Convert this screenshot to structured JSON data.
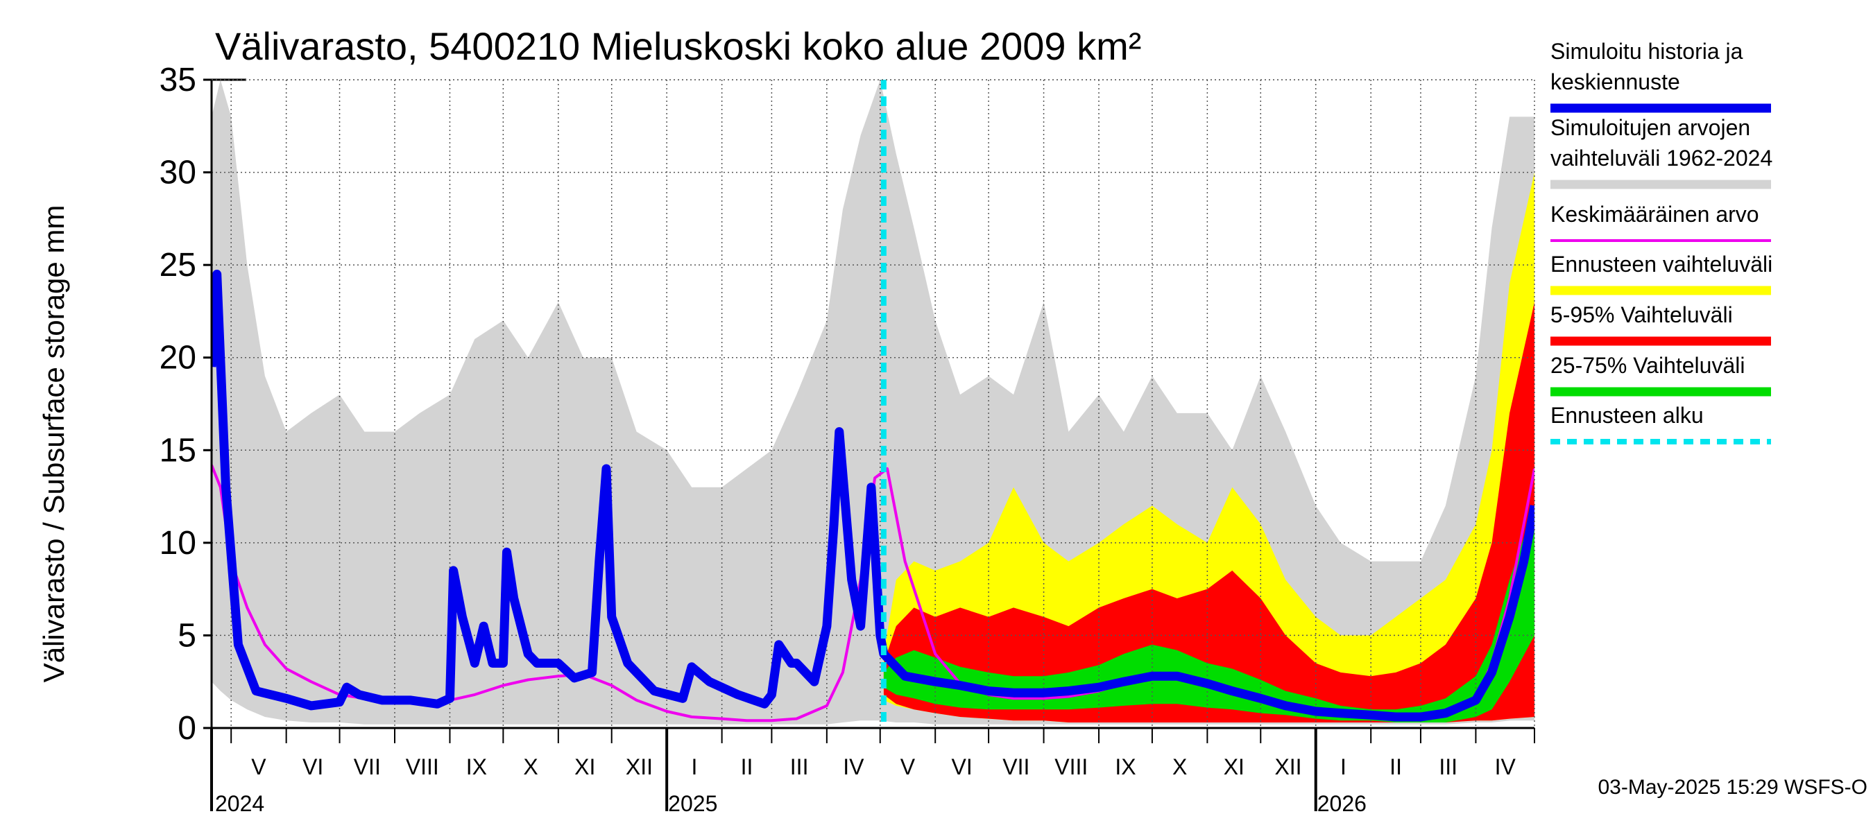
{
  "chart_data": {
    "type": "area",
    "title": "Välivarasto, 5400210 Mieluskoski koko alue 2009 km²",
    "ylabel": "Välivarasto / Subsurface storage  mm",
    "ylim": [
      0,
      35
    ],
    "yticks": [
      0,
      5,
      10,
      15,
      20,
      25,
      30,
      35
    ],
    "grid": true,
    "legend_position": "right",
    "xlim": [
      "2024-04-20",
      "2026-05-04"
    ],
    "months": [
      {
        "label": "V",
        "start": "2024-05-01"
      },
      {
        "label": "VI",
        "start": "2024-06-01"
      },
      {
        "label": "VII",
        "start": "2024-07-01"
      },
      {
        "label": "VIII",
        "start": "2024-08-01"
      },
      {
        "label": "IX",
        "start": "2024-09-01"
      },
      {
        "label": "X",
        "start": "2024-10-01"
      },
      {
        "label": "XI",
        "start": "2024-11-01"
      },
      {
        "label": "XII",
        "start": "2024-12-01"
      },
      {
        "label": "I",
        "start": "2025-01-01"
      },
      {
        "label": "II",
        "start": "2025-02-01"
      },
      {
        "label": "III",
        "start": "2025-03-01"
      },
      {
        "label": "IV",
        "start": "2025-04-01"
      },
      {
        "label": "V",
        "start": "2025-05-01"
      },
      {
        "label": "VI",
        "start": "2025-06-01"
      },
      {
        "label": "VII",
        "start": "2025-07-01"
      },
      {
        "label": "VIII",
        "start": "2025-08-01"
      },
      {
        "label": "IX",
        "start": "2025-09-01"
      },
      {
        "label": "X",
        "start": "2025-10-01"
      },
      {
        "label": "XI",
        "start": "2025-11-01"
      },
      {
        "label": "XII",
        "start": "2025-12-01"
      },
      {
        "label": "I",
        "start": "2026-01-01"
      },
      {
        "label": "II",
        "start": "2026-02-01"
      },
      {
        "label": "III",
        "start": "2026-03-01"
      },
      {
        "label": "IV",
        "start": "2026-04-01"
      }
    ],
    "years": [
      {
        "label": "2024",
        "date": "2024-05-01"
      },
      {
        "label": "2025",
        "date": "2025-01-01"
      },
      {
        "label": "2026",
        "date": "2026-01-01"
      }
    ],
    "forecast_start": "2025-05-03",
    "series": [
      {
        "name": "Simuloitujen arvojen vaihteluväli 1962-2024",
        "color": "#d3d3d3",
        "kind": "band",
        "x": [
          "2024-04-20",
          "2024-04-25",
          "2024-05-01",
          "2024-05-10",
          "2024-05-20",
          "2024-06-01",
          "2024-06-15",
          "2024-07-01",
          "2024-07-15",
          "2024-08-01",
          "2024-08-15",
          "2024-09-01",
          "2024-09-15",
          "2024-10-01",
          "2024-10-15",
          "2024-11-01",
          "2024-11-15",
          "2024-12-01",
          "2024-12-15",
          "2025-01-01",
          "2025-01-15",
          "2025-02-01",
          "2025-02-15",
          "2025-03-01",
          "2025-03-15",
          "2025-04-01",
          "2025-04-10",
          "2025-04-20",
          "2025-05-01",
          "2025-05-10",
          "2025-05-20",
          "2025-06-01",
          "2025-06-15",
          "2025-07-01",
          "2025-07-15",
          "2025-08-01",
          "2025-08-15",
          "2025-09-01",
          "2025-09-15",
          "2025-10-01",
          "2025-10-15",
          "2025-11-01",
          "2025-11-15",
          "2025-12-01",
          "2025-12-15",
          "2026-01-01",
          "2026-01-15",
          "2026-02-01",
          "2026-02-15",
          "2026-03-01",
          "2026-03-15",
          "2026-04-01",
          "2026-04-10",
          "2026-04-20",
          "2026-05-04"
        ],
        "low": [
          2.5,
          2.0,
          1.5,
          1.0,
          0.6,
          0.4,
          0.3,
          0.3,
          0.2,
          0.2,
          0.2,
          0.2,
          0.2,
          0.2,
          0.2,
          0.2,
          0.2,
          0.2,
          0.2,
          0.2,
          0.2,
          0.2,
          0.2,
          0.2,
          0.2,
          0.2,
          0.3,
          0.4,
          0.4,
          0.3,
          0.3,
          0.2,
          0.2,
          0.2,
          0.2,
          0.2,
          0.2,
          0.2,
          0.2,
          0.2,
          0.2,
          0.2,
          0.2,
          0.2,
          0.2,
          0.2,
          0.2,
          0.2,
          0.2,
          0.2,
          0.2,
          0.3,
          0.3,
          0.4,
          0.4
        ],
        "high": [
          33,
          35,
          33,
          25,
          19,
          16,
          17,
          18,
          16,
          16,
          17,
          18,
          21,
          22,
          20,
          23,
          20,
          20,
          16,
          15,
          13,
          13,
          14,
          15,
          18,
          22,
          28,
          32,
          35,
          31,
          27,
          22,
          18,
          19,
          18,
          23,
          16,
          18,
          16,
          19,
          17,
          17,
          15,
          19,
          16,
          12,
          10,
          9,
          9,
          9,
          12,
          19,
          27,
          33,
          33
        ]
      },
      {
        "name": "Ennusteen vaihteluväli",
        "color": "#ffff00",
        "kind": "band",
        "x": [
          "2025-05-03",
          "2025-05-10",
          "2025-05-20",
          "2025-06-01",
          "2025-06-15",
          "2025-07-01",
          "2025-07-15",
          "2025-08-01",
          "2025-08-15",
          "2025-09-01",
          "2025-09-15",
          "2025-10-01",
          "2025-10-15",
          "2025-11-01",
          "2025-11-15",
          "2025-12-01",
          "2025-12-15",
          "2026-01-01",
          "2026-01-15",
          "2026-02-01",
          "2026-02-15",
          "2026-03-01",
          "2026-03-15",
          "2026-04-01",
          "2026-04-10",
          "2026-04-20",
          "2026-05-04"
        ],
        "low": [
          1.5,
          1.2,
          1.0,
          0.8,
          0.6,
          0.5,
          0.4,
          0.4,
          0.3,
          0.3,
          0.3,
          0.3,
          0.3,
          0.3,
          0.3,
          0.3,
          0.3,
          0.3,
          0.3,
          0.3,
          0.3,
          0.3,
          0.3,
          0.4,
          0.4,
          0.5,
          0.6
        ],
        "high": [
          4.0,
          8.0,
          9.0,
          8.5,
          9.0,
          10.0,
          13.0,
          10.0,
          9.0,
          10.0,
          11.0,
          12.0,
          11.0,
          10.0,
          13.0,
          11.0,
          8.0,
          6.0,
          5.0,
          5.0,
          6.0,
          7.0,
          8.0,
          11.0,
          15.0,
          24.0,
          30.0
        ]
      },
      {
        "name": "5-95% Vaihteluväli",
        "color": "#ff0000",
        "kind": "band",
        "x": [
          "2025-05-03",
          "2025-05-10",
          "2025-05-20",
          "2025-06-01",
          "2025-06-15",
          "2025-07-01",
          "2025-07-15",
          "2025-08-01",
          "2025-08-15",
          "2025-09-01",
          "2025-09-15",
          "2025-10-01",
          "2025-10-15",
          "2025-11-01",
          "2025-11-15",
          "2025-12-01",
          "2025-12-15",
          "2026-01-01",
          "2026-01-15",
          "2026-02-01",
          "2026-02-15",
          "2026-03-01",
          "2026-03-15",
          "2026-04-01",
          "2026-04-10",
          "2026-04-20",
          "2026-05-04"
        ],
        "low": [
          1.8,
          1.3,
          1.0,
          0.8,
          0.6,
          0.5,
          0.4,
          0.4,
          0.3,
          0.3,
          0.3,
          0.3,
          0.3,
          0.3,
          0.3,
          0.3,
          0.3,
          0.3,
          0.3,
          0.3,
          0.3,
          0.3,
          0.3,
          0.4,
          0.4,
          0.5,
          0.6
        ],
        "high": [
          3.5,
          5.5,
          6.5,
          6.0,
          6.5,
          6.0,
          6.5,
          6.0,
          5.5,
          6.5,
          7.0,
          7.5,
          7.0,
          7.5,
          8.5,
          7.0,
          5.0,
          3.5,
          3.0,
          2.8,
          3.0,
          3.5,
          4.5,
          7.0,
          10.0,
          17.0,
          23.0
        ]
      },
      {
        "name": "25-75% Vaihteluväli",
        "color": "#00dd00",
        "kind": "band",
        "x": [
          "2025-05-03",
          "2025-05-10",
          "2025-05-20",
          "2025-06-01",
          "2025-06-15",
          "2025-07-01",
          "2025-07-15",
          "2025-08-01",
          "2025-08-15",
          "2025-09-01",
          "2025-09-15",
          "2025-10-01",
          "2025-10-15",
          "2025-11-01",
          "2025-11-15",
          "2025-12-01",
          "2025-12-15",
          "2026-01-01",
          "2026-01-15",
          "2026-02-01",
          "2026-02-15",
          "2026-03-01",
          "2026-03-15",
          "2026-04-01",
          "2026-04-10",
          "2026-04-20",
          "2026-05-04"
        ],
        "low": [
          2.2,
          1.8,
          1.6,
          1.3,
          1.1,
          1.0,
          1.0,
          1.0,
          1.0,
          1.1,
          1.2,
          1.3,
          1.3,
          1.1,
          1.0,
          0.8,
          0.7,
          0.5,
          0.4,
          0.4,
          0.3,
          0.3,
          0.3,
          0.6,
          1.0,
          2.5,
          5.0
        ],
        "high": [
          3.0,
          3.8,
          4.2,
          3.8,
          3.3,
          3.0,
          2.8,
          2.8,
          3.0,
          3.4,
          4.0,
          4.5,
          4.2,
          3.5,
          3.2,
          2.6,
          2.0,
          1.6,
          1.2,
          1.0,
          1.0,
          1.2,
          1.6,
          2.8,
          4.5,
          8.0,
          12.0
        ]
      },
      {
        "name": "Keskimääräinen arvo",
        "color": "#ee00ee",
        "kind": "line",
        "x": [
          "2024-04-20",
          "2024-04-25",
          "2024-05-01",
          "2024-05-10",
          "2024-05-20",
          "2024-06-01",
          "2024-06-15",
          "2024-07-01",
          "2024-07-15",
          "2024-08-01",
          "2024-08-15",
          "2024-09-01",
          "2024-09-15",
          "2024-10-01",
          "2024-10-15",
          "2024-11-01",
          "2024-11-15",
          "2024-12-01",
          "2024-12-15",
          "2025-01-01",
          "2025-01-15",
          "2025-02-01",
          "2025-02-15",
          "2025-03-01",
          "2025-03-15",
          "2025-04-01",
          "2025-04-10",
          "2025-04-20",
          "2025-04-28",
          "2025-05-05",
          "2025-05-15",
          "2025-06-01",
          "2025-06-15",
          "2025-07-01",
          "2025-07-15",
          "2025-08-01",
          "2025-08-15",
          "2025-09-01",
          "2025-09-15",
          "2025-10-01",
          "2025-10-15",
          "2025-11-01",
          "2025-11-15",
          "2025-12-01",
          "2025-12-15",
          "2026-01-01",
          "2026-01-15",
          "2026-02-01",
          "2026-02-15",
          "2026-03-01",
          "2026-03-15",
          "2026-04-01",
          "2026-04-10",
          "2026-04-20",
          "2026-04-28",
          "2026-05-04"
        ],
        "y": [
          14.2,
          13.0,
          9.0,
          6.5,
          4.5,
          3.2,
          2.5,
          1.8,
          1.6,
          1.5,
          1.4,
          1.5,
          1.8,
          2.3,
          2.6,
          2.8,
          2.9,
          2.3,
          1.5,
          0.9,
          0.6,
          0.5,
          0.4,
          0.4,
          0.5,
          1.2,
          3.0,
          8.0,
          13.5,
          14.0,
          9.0,
          4.0,
          2.4,
          1.8,
          1.6,
          1.6,
          1.7,
          2.0,
          2.4,
          2.8,
          2.8,
          2.5,
          2.0,
          1.5,
          1.2,
          0.9,
          0.7,
          0.6,
          0.5,
          0.5,
          0.7,
          1.5,
          3.5,
          7.0,
          11.0,
          14.0
        ]
      },
      {
        "name": "Simuloitu historia ja keskiennuste",
        "color": "#0000ee",
        "kind": "line",
        "x": [
          "2024-04-20",
          "2024-04-23",
          "2024-04-28",
          "2024-05-05",
          "2024-05-15",
          "2024-06-01",
          "2024-06-15",
          "2024-07-01",
          "2024-07-05",
          "2024-07-12",
          "2024-07-25",
          "2024-08-10",
          "2024-08-25",
          "2024-09-01",
          "2024-09-03",
          "2024-09-08",
          "2024-09-15",
          "2024-09-20",
          "2024-09-25",
          "2024-10-01",
          "2024-10-03",
          "2024-10-07",
          "2024-10-15",
          "2024-10-20",
          "2024-11-01",
          "2024-11-10",
          "2024-11-20",
          "2024-11-24",
          "2024-11-28",
          "2024-12-01",
          "2024-12-10",
          "2024-12-25",
          "2025-01-10",
          "2025-01-15",
          "2025-01-25",
          "2025-02-10",
          "2025-02-25",
          "2025-03-01",
          "2025-03-05",
          "2025-03-12",
          "2025-03-15",
          "2025-03-25",
          "2025-04-01",
          "2025-04-05",
          "2025-04-08",
          "2025-04-15",
          "2025-04-20",
          "2025-04-26",
          "2025-05-01",
          "2025-05-03",
          "2025-05-15",
          "2025-06-01",
          "2025-06-15",
          "2025-07-01",
          "2025-07-15",
          "2025-08-01",
          "2025-08-15",
          "2025-09-01",
          "2025-09-15",
          "2025-10-01",
          "2025-10-15",
          "2025-11-01",
          "2025-11-15",
          "2025-12-01",
          "2025-12-15",
          "2026-01-01",
          "2026-01-15",
          "2026-02-01",
          "2026-02-15",
          "2026-03-01",
          "2026-03-15",
          "2026-04-01",
          "2026-04-10",
          "2026-04-20",
          "2026-04-28",
          "2026-05-04"
        ],
        "y": [
          19.5,
          24.5,
          13.0,
          4.5,
          2.0,
          1.6,
          1.2,
          1.4,
          2.2,
          1.8,
          1.5,
          1.5,
          1.3,
          1.6,
          8.5,
          6.0,
          3.5,
          5.5,
          3.5,
          3.5,
          9.5,
          7.0,
          4.0,
          3.5,
          3.5,
          2.7,
          3.0,
          9.0,
          14.0,
          6.0,
          3.5,
          2.0,
          1.6,
          3.3,
          2.5,
          1.8,
          1.3,
          1.8,
          4.5,
          3.5,
          3.5,
          2.5,
          5.5,
          11.0,
          16.0,
          8.0,
          5.5,
          13.0,
          5.0,
          4.0,
          2.8,
          2.5,
          2.3,
          2.0,
          1.9,
          1.9,
          2.0,
          2.2,
          2.5,
          2.8,
          2.8,
          2.4,
          2.0,
          1.6,
          1.2,
          0.9,
          0.8,
          0.7,
          0.6,
          0.6,
          0.8,
          1.5,
          3.0,
          6.0,
          9.0,
          12.0
        ]
      }
    ]
  },
  "legend": [
    {
      "lines": [
        "Simuloitu historia ja",
        "keskiennuste"
      ],
      "color": "#0000ee",
      "style": "thick"
    },
    {
      "lines": [
        "Simuloitujen arvojen",
        "vaihteluväli 1962-2024"
      ],
      "color": "#d3d3d3",
      "style": "thick"
    },
    {
      "lines": [
        "Keskimääräinen arvo"
      ],
      "color": "#ee00ee",
      "style": "thin"
    },
    {
      "lines": [
        "Ennusteen vaihteluväli"
      ],
      "color": "#ffff00",
      "style": "thick"
    },
    {
      "lines": [
        "5-95% Vaihteluväli"
      ],
      "color": "#ff0000",
      "style": "thick"
    },
    {
      "lines": [
        "25-75% Vaihteluväli"
      ],
      "color": "#00dd00",
      "style": "thick"
    },
    {
      "lines": [
        "Ennusteen alku"
      ],
      "color": "#00e5ee",
      "style": "dashed"
    }
  ],
  "footer": "03-May-2025 15:29 WSFS-O"
}
